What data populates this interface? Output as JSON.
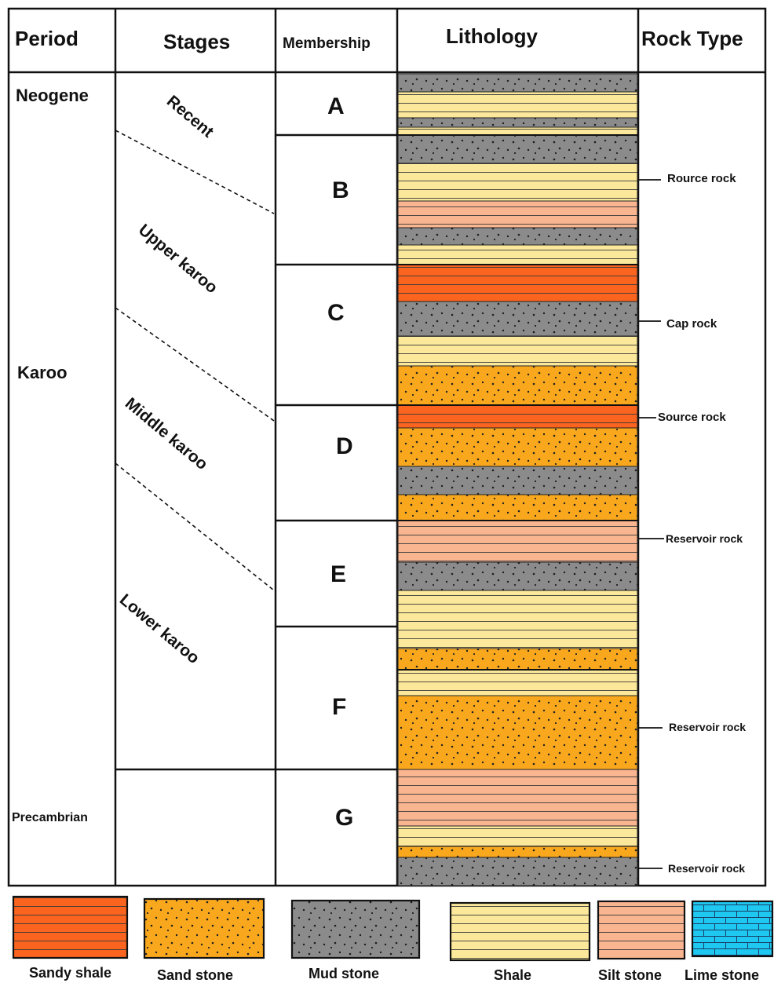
{
  "headers": {
    "period": "Period",
    "stages": "Stages",
    "membership": "Membership",
    "lithology": "Lithology",
    "rock_type": "Rock Type"
  },
  "periods": [
    "Neogene",
    "Karoo",
    "Precambrian"
  ],
  "stages": [
    "Recent",
    "Upper karoo",
    "Middle karoo",
    "Lower karoo"
  ],
  "members": [
    "A",
    "B",
    "C",
    "D",
    "E",
    "F",
    "G"
  ],
  "rock_types": [
    "Rource rock",
    "Cap rock",
    "Source rock",
    "Reservoir rock",
    "Reservoir rock",
    "Reservoir rock"
  ],
  "legend": [
    "Sandy shale",
    "Sand stone",
    "Mud stone",
    "Shale",
    "Silt stone",
    "Lime stone"
  ],
  "lithology_colors": {
    "sandy_shale": "#fa641e",
    "sand_stone": "#f9a81e",
    "mud_stone": "#8b8b8b",
    "shale": "#fbe89a",
    "silt_stone": "#f9b590",
    "lime_stone": "#1ec8f0"
  },
  "lithology_column": [
    {
      "rock": "mud_stone"
    },
    {
      "rock": "shale"
    },
    {
      "rock": "mud_stone"
    },
    {
      "rock": "shale"
    },
    {
      "rock": "mud_stone"
    },
    {
      "rock": "shale"
    },
    {
      "rock": "silt_stone"
    },
    {
      "rock": "mud_stone"
    },
    {
      "rock": "shale"
    },
    {
      "rock": "sandy_shale"
    },
    {
      "rock": "mud_stone"
    },
    {
      "rock": "shale"
    },
    {
      "rock": "sand_stone"
    },
    {
      "rock": "sandy_shale"
    },
    {
      "rock": "sand_stone"
    },
    {
      "rock": "mud_stone"
    },
    {
      "rock": "sand_stone"
    },
    {
      "rock": "silt_stone"
    },
    {
      "rock": "mud_stone"
    },
    {
      "rock": "shale"
    },
    {
      "rock": "sand_stone"
    },
    {
      "rock": "shale"
    },
    {
      "rock": "sand_stone"
    },
    {
      "rock": "silt_stone"
    },
    {
      "rock": "shale"
    },
    {
      "rock": "sand_stone"
    },
    {
      "rock": "mud_stone"
    },
    {
      "rock": "lime_stone"
    }
  ]
}
